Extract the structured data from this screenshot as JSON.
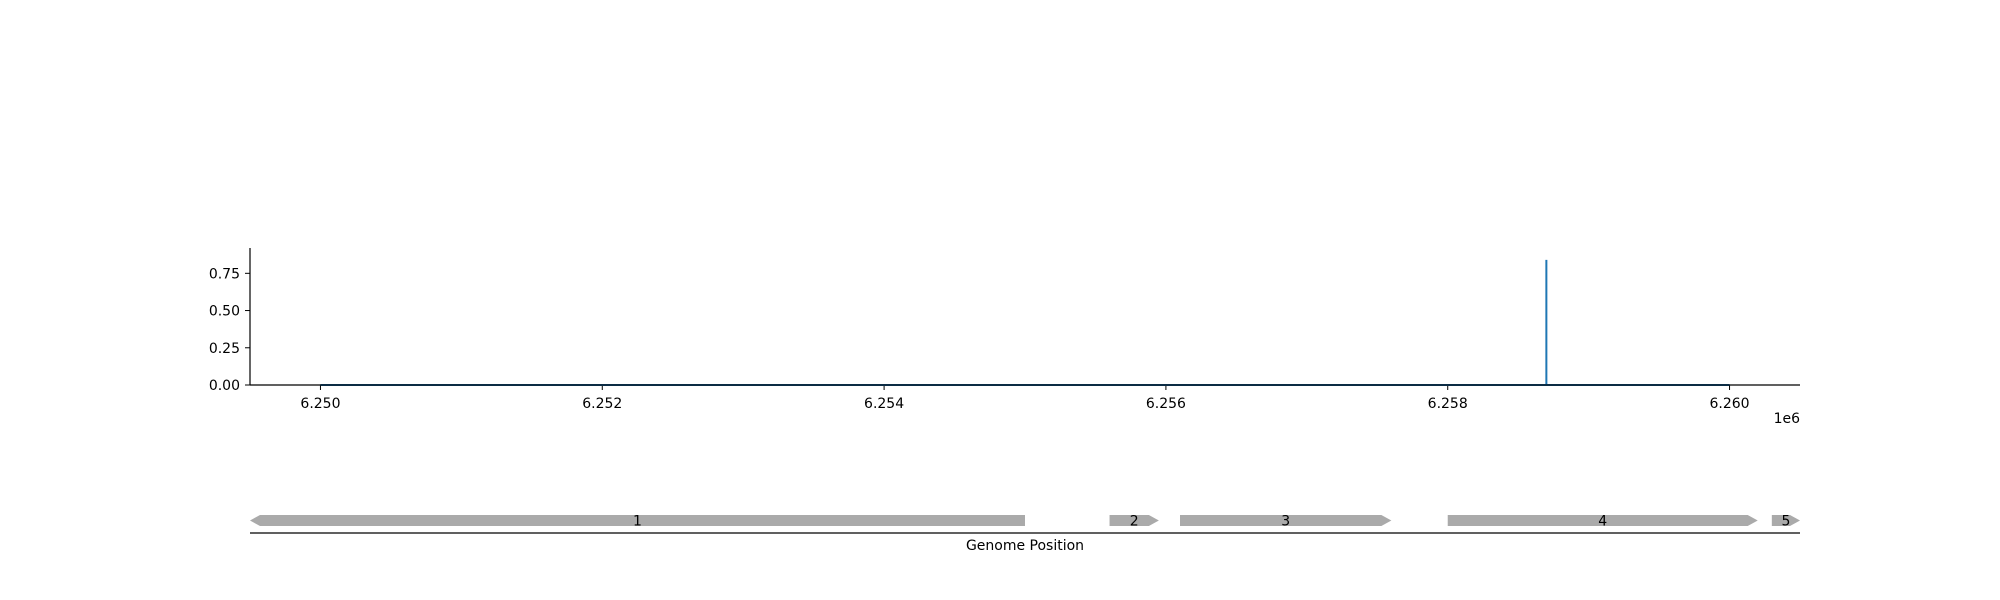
{
  "chart_data": [
    {
      "type": "line",
      "title": "",
      "xlabel": "",
      "ylabel": "",
      "x_offset_label": "1e6",
      "xlim": [
        6249500,
        6260500
      ],
      "ylim": [
        0,
        0.92
      ],
      "x_ticks": [
        6250000,
        6252000,
        6254000,
        6256000,
        6258000,
        6260000
      ],
      "x_tick_labels": [
        "6.250",
        "6.252",
        "6.254",
        "6.256",
        "6.258",
        "6.260"
      ],
      "y_ticks": [
        0,
        0.25,
        0.5,
        0.75
      ],
      "y_tick_labels": [
        "0.00",
        "0.25",
        "0.50",
        "0.75"
      ],
      "grid": false,
      "color": "#1f77b4",
      "series": [
        {
          "x": [
            6250000,
            6258700,
            6258700,
            6258700,
            6260000
          ],
          "y": [
            0,
            0,
            0.84,
            0,
            0
          ]
        }
      ]
    },
    {
      "type": "gene_track",
      "xlabel": "Genome Position",
      "feature_color": "#aaaaaa",
      "features": [
        {
          "label": "1",
          "start": 6249500,
          "end": 6255000,
          "strand": "-"
        },
        {
          "label": "2",
          "start": 6255600,
          "end": 6255950,
          "strand": "+"
        },
        {
          "label": "3",
          "start": 6256100,
          "end": 6257600,
          "strand": "+"
        },
        {
          "label": "4",
          "start": 6258000,
          "end": 6260200,
          "strand": "+"
        },
        {
          "label": "5",
          "start": 6260300,
          "end": 6260500,
          "strand": "+"
        }
      ]
    }
  ]
}
